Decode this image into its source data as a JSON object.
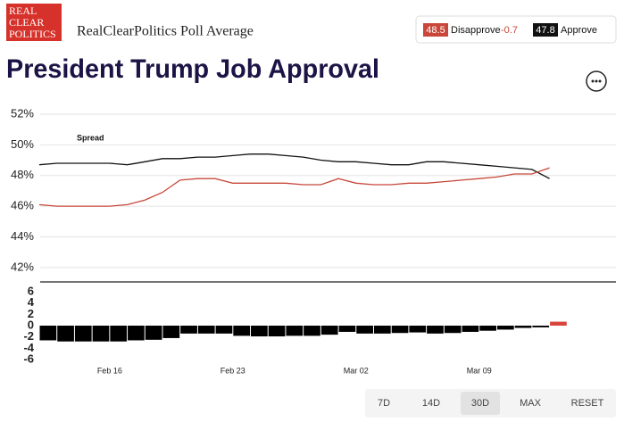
{
  "header": {
    "logo": [
      "REAL",
      "CLEAR",
      "POLITICS"
    ],
    "source": "RealClearPolitics Poll Average",
    "title": "President Trump Job Approval",
    "legend": [
      {
        "value": 48.5,
        "name": "Disapprove",
        "change": -0.7
      },
      {
        "value": 47.8,
        "name": "Approve"
      }
    ]
  },
  "chart_data": [
    {
      "type": "line",
      "categories": [
        null,
        null,
        null,
        null,
        "Feb 16",
        null,
        null,
        null,
        null,
        null,
        null,
        "Feb 23",
        null,
        null,
        null,
        null,
        null,
        null,
        "Mar 02",
        null,
        null,
        null,
        null,
        null,
        null,
        "Mar 09",
        null,
        null,
        null,
        null
      ],
      "series": [
        {
          "name": "Approve",
          "color": "#111111",
          "values": [
            48.7,
            48.8,
            48.8,
            48.8,
            48.8,
            48.7,
            48.9,
            49.1,
            49.1,
            49.2,
            49.2,
            49.3,
            49.4,
            49.4,
            49.3,
            49.2,
            49.0,
            48.9,
            48.9,
            48.8,
            48.7,
            48.7,
            48.9,
            48.9,
            48.8,
            48.7,
            48.6,
            48.5,
            48.4,
            47.8
          ]
        },
        {
          "name": "Disapprove",
          "color": "#c8473a",
          "values": [
            46.1,
            46.0,
            46.0,
            46.0,
            46.0,
            46.1,
            46.4,
            46.9,
            47.7,
            47.8,
            47.8,
            47.5,
            47.5,
            47.5,
            47.5,
            47.4,
            47.4,
            47.8,
            47.5,
            47.4,
            47.4,
            47.5,
            47.5,
            47.6,
            47.7,
            47.8,
            47.9,
            48.1,
            48.1,
            48.5
          ]
        }
      ],
      "ylim": [
        41,
        52
      ],
      "yticks": [
        {
          "value": 42,
          "label": "42%"
        },
        {
          "value": 44,
          "label": "44%"
        },
        {
          "value": 46,
          "label": "46%"
        },
        {
          "value": 48,
          "label": "48%"
        },
        {
          "value": 50,
          "label": "50%"
        },
        {
          "value": 52,
          "label": "52%"
        }
      ],
      "grid": true
    },
    {
      "type": "bar",
      "title": "Spread",
      "categories": [
        null,
        null,
        null,
        null,
        "Feb 16",
        null,
        null,
        null,
        null,
        null,
        null,
        "Feb 23",
        null,
        null,
        null,
        null,
        null,
        null,
        "Mar 02",
        null,
        null,
        null,
        null,
        null,
        null,
        "Mar 09",
        null,
        null,
        null,
        null
      ],
      "values": [
        -2.6,
        -2.8,
        -2.8,
        -2.8,
        -2.8,
        -2.6,
        -2.5,
        -2.2,
        -1.4,
        -1.4,
        -1.4,
        -1.8,
        -1.9,
        -1.9,
        -1.8,
        -1.8,
        -1.6,
        -1.1,
        -1.4,
        -1.4,
        -1.3,
        -1.2,
        -1.4,
        -1.3,
        -1.1,
        -0.9,
        -0.7,
        -0.4,
        -0.3,
        0.7
      ],
      "negative_color": "#000000",
      "positive_color": "#d9443b",
      "ylim": [
        -6,
        6
      ],
      "yticks": [
        6,
        4,
        2,
        0,
        -2,
        -4,
        -6
      ]
    }
  ],
  "buttons": [
    "7D",
    "14D",
    "30D",
    "MAX",
    "RESET"
  ],
  "selected_button": "30D"
}
